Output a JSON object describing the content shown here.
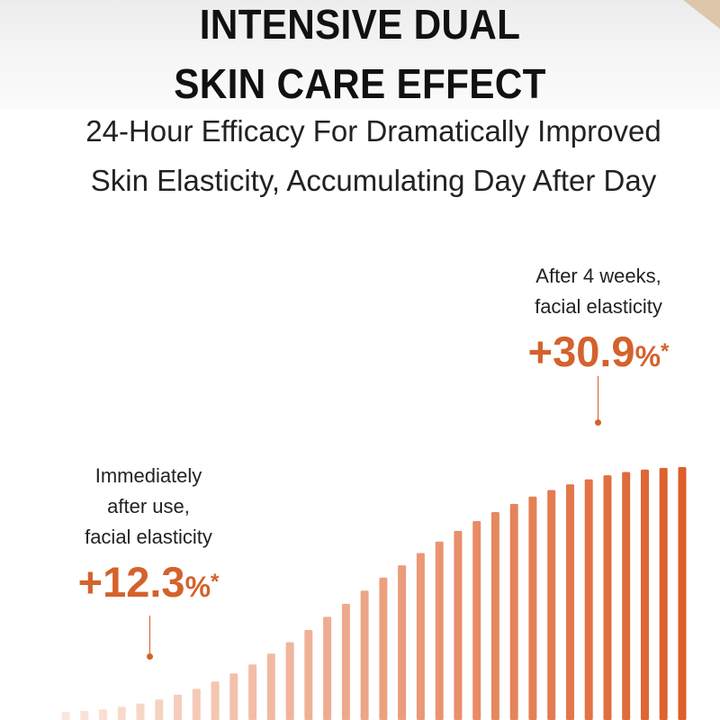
{
  "header": {
    "title_line1": "INTENSIVE DUAL",
    "title_line2": "SKIN CARE EFFECT",
    "subtitle_line1": "24-Hour Efficacy For Dramatically Improved",
    "subtitle_line2": "Skin Elasticity, Accumulating Day After Day"
  },
  "callouts": {
    "left": {
      "line1": "Immediately",
      "line2": "after use,",
      "line3": "facial elasticity",
      "value": "+12.3",
      "unit": "%",
      "mark": "*"
    },
    "right": {
      "line1": "After 4 weeks,",
      "line2": "facial elasticity",
      "value": "+30.9",
      "unit": "%",
      "mark": "*"
    }
  },
  "colors": {
    "accent": "#d4622c",
    "bar_light": "#fbe6dc",
    "bar_dark": "#dd5f2a",
    "title": "#111111",
    "text": "#222222"
  },
  "chart_data": {
    "type": "bar",
    "values": [
      1.0,
      1.1,
      1.3,
      1.6,
      2.0,
      2.5,
      3.1,
      3.8,
      4.7,
      5.7,
      6.8,
      8.1,
      9.5,
      11.0,
      12.6,
      14.2,
      15.8,
      17.4,
      18.9,
      20.4,
      21.8,
      23.1,
      24.3,
      25.4,
      26.4,
      27.3,
      28.1,
      28.8,
      29.4,
      29.9,
      30.3,
      30.6,
      30.8,
      30.9
    ],
    "ylim": [
      0,
      30.9
    ],
    "grid": false,
    "legend": "none"
  }
}
